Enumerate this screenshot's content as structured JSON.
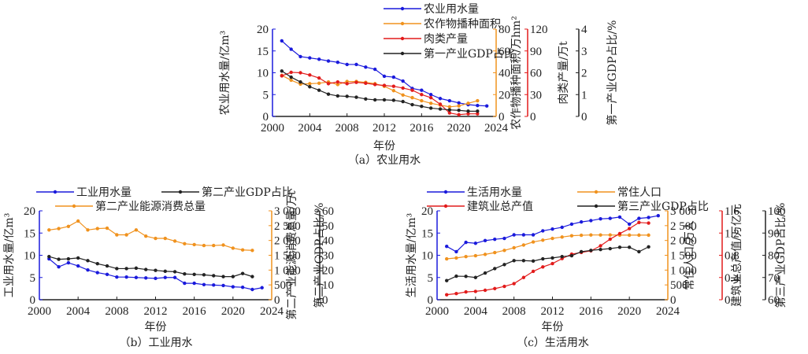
{
  "chart_data": [
    {
      "id": "a",
      "type": "line",
      "caption": "（a）农业用水",
      "xlabel": "年份",
      "xlim": [
        2000,
        2024
      ],
      "xticks": [
        2000,
        2004,
        2008,
        2012,
        2016,
        2020,
        2024
      ],
      "axes": [
        {
          "id": "y1",
          "label": "农业用水量/亿m³",
          "lim": [
            0,
            20
          ],
          "ticks": [
            "0",
            "5",
            "10",
            "15",
            "20"
          ],
          "color": "#1a1adc",
          "side": "left"
        },
        {
          "id": "y2",
          "label": "农作物播种面积/万hm²",
          "lim": [
            0,
            80
          ],
          "ticks": [
            "0",
            "20",
            "40",
            "60",
            "80"
          ],
          "color": "#f0921e",
          "side": "right"
        },
        {
          "id": "y3",
          "label": "肉类产量/万t",
          "lim": [
            0,
            120
          ],
          "ticks": [
            "0",
            "30",
            "60",
            "90",
            "120"
          ],
          "color": "#e21b1b",
          "side": "right"
        },
        {
          "id": "y4",
          "label": "第一产业GDP占比/%",
          "lim": [
            0,
            4
          ],
          "ticks": [
            "0",
            "1",
            "2",
            "3",
            "4"
          ],
          "color": "#222222",
          "side": "right"
        }
      ],
      "series": [
        {
          "name": "农业用水量",
          "axis": "y1",
          "color": "#1a1adc",
          "x": [
            2001,
            2002,
            2003,
            2004,
            2005,
            2006,
            2007,
            2008,
            2009,
            2010,
            2011,
            2012,
            2013,
            2014,
            2015,
            2016,
            2017,
            2018,
            2019,
            2020,
            2021,
            2022,
            2023
          ],
          "values": [
            17.3,
            15.4,
            13.7,
            13.4,
            13.1,
            12.7,
            12.4,
            11.9,
            11.9,
            11.3,
            10.8,
            9.2,
            9.0,
            8.1,
            6.4,
            6.0,
            5.0,
            4.1,
            3.6,
            3.1,
            2.7,
            2.5,
            2.4
          ]
        },
        {
          "name": "农作物播种面积",
          "axis": "y2",
          "color": "#f0921e",
          "x": [
            2001,
            2002,
            2003,
            2004,
            2005,
            2006,
            2007,
            2008,
            2009,
            2010,
            2011,
            2012,
            2013,
            2014,
            2015,
            2016,
            2017,
            2018,
            2019,
            2020,
            2021,
            2022
          ],
          "values": [
            37.6,
            33.2,
            29.6,
            30.0,
            30.4,
            31.6,
            29.2,
            32.0,
            32.0,
            31.2,
            30.0,
            27.6,
            23.6,
            19.6,
            17.2,
            14.4,
            12.0,
            10.4,
            8.8,
            9.6,
            12.0,
            14.4
          ]
        },
        {
          "name": "肉类产量",
          "axis": "y3",
          "color": "#e21b1b",
          "x": [
            2001,
            2002,
            2003,
            2004,
            2005,
            2006,
            2007,
            2008,
            2009,
            2010,
            2011,
            2012,
            2013,
            2014,
            2015,
            2016,
            2017,
            2018,
            2019,
            2020,
            2021,
            2022
          ],
          "values": [
            55.8,
            60.6,
            60.0,
            57.0,
            52.8,
            45.0,
            47.4,
            45.0,
            46.8,
            45.6,
            43.8,
            42.6,
            41.4,
            39.0,
            36.0,
            30.0,
            25.8,
            16.8,
            4.8,
            2.4,
            3.6,
            3.6
          ]
        },
        {
          "name": "第一产业GDP占比",
          "axis": "y4",
          "color": "#222222",
          "x": [
            2001,
            2002,
            2003,
            2004,
            2005,
            2006,
            2007,
            2008,
            2009,
            2010,
            2011,
            2012,
            2013,
            2014,
            2015,
            2016,
            2017,
            2018,
            2019,
            2020,
            2021,
            2022
          ],
          "values": [
            2.08,
            1.8,
            1.58,
            1.36,
            1.2,
            1.02,
            0.94,
            0.92,
            0.88,
            0.8,
            0.76,
            0.76,
            0.74,
            0.68,
            0.54,
            0.46,
            0.38,
            0.34,
            0.3,
            0.28,
            0.24,
            0.24
          ]
        }
      ],
      "legend": "top-right, stacked"
    },
    {
      "id": "b",
      "type": "line",
      "caption": "（b）工业用水",
      "xlabel": "年份",
      "xlim": [
        2000,
        2024
      ],
      "xticks": [
        2000,
        2004,
        2008,
        2012,
        2016,
        2020,
        2024
      ],
      "axes": [
        {
          "id": "y1",
          "label": "工业用水量/亿m³",
          "lim": [
            0,
            20
          ],
          "ticks": [
            "0",
            "5",
            "10",
            "15",
            "20"
          ],
          "color": "#1a1adc",
          "side": "left"
        },
        {
          "id": "y2",
          "label": "第二产业能源消费总量/万t",
          "lim": [
            0,
            3000
          ],
          "ticks": [
            "0",
            "500",
            "1 000",
            "1 500",
            "2 000",
            "2 500",
            "3 000"
          ],
          "color": "#f0921e",
          "side": "right"
        },
        {
          "id": "y3",
          "label": "第二产业GDP占比/%",
          "lim": [
            0,
            60
          ],
          "ticks": [
            "0",
            "10",
            "20",
            "30",
            "40",
            "50",
            "60"
          ],
          "color": "#222222",
          "side": "right"
        }
      ],
      "series": [
        {
          "name": "工业用水量",
          "axis": "y1",
          "color": "#1a1adc",
          "x": [
            2001,
            2002,
            2003,
            2004,
            2005,
            2006,
            2007,
            2008,
            2009,
            2010,
            2011,
            2012,
            2013,
            2014,
            2015,
            2016,
            2017,
            2018,
            2019,
            2020,
            2021,
            2022,
            2023
          ],
          "values": [
            9.2,
            7.4,
            8.3,
            7.6,
            6.7,
            6.1,
            5.7,
            5.1,
            5.1,
            5.0,
            4.9,
            4.8,
            5.0,
            5.0,
            3.7,
            3.7,
            3.4,
            3.3,
            3.2,
            2.9,
            2.8,
            2.3,
            2.7
          ]
        },
        {
          "name": "第二产业GDP占比",
          "axis": "y3",
          "color": "#222222",
          "x": [
            2001,
            2002,
            2003,
            2004,
            2005,
            2006,
            2007,
            2008,
            2009,
            2010,
            2011,
            2012,
            2013,
            2014,
            2015,
            2016,
            2017,
            2018,
            2019,
            2020,
            2021,
            2022
          ],
          "values": [
            29.1,
            27.3,
            27.6,
            28.2,
            26.4,
            24.3,
            22.8,
            21.0,
            21.0,
            21.3,
            20.4,
            19.8,
            19.2,
            18.9,
            17.4,
            17.1,
            16.8,
            16.2,
            15.6,
            15.6,
            17.7,
            15.6
          ]
        },
        {
          "name": "第二产业能源消费总量",
          "axis": "y2",
          "color": "#f0921e",
          "x": [
            2001,
            2002,
            2003,
            2004,
            2005,
            2006,
            2007,
            2008,
            2009,
            2010,
            2011,
            2012,
            2013,
            2014,
            2015,
            2016,
            2017,
            2018,
            2019,
            2020,
            2021,
            2022
          ],
          "values": [
            2355,
            2400,
            2475,
            2655,
            2355,
            2400,
            2415,
            2190,
            2190,
            2355,
            2145,
            2070,
            2070,
            1980,
            1890,
            1860,
            1830,
            1830,
            1845,
            1740,
            1680,
            1665
          ]
        }
      ],
      "legend": "top, two rows"
    },
    {
      "id": "c",
      "type": "line",
      "caption": "（c）生活用水",
      "xlabel": "年份",
      "xlim": [
        2000,
        2024
      ],
      "xticks": [
        2000,
        2004,
        2008,
        2012,
        2016,
        2020,
        2024
      ],
      "axes": [
        {
          "id": "y1",
          "label": "生活用水量/亿m³",
          "lim": [
            0,
            20
          ],
          "ticks": [
            "0",
            "5",
            "10",
            "15",
            "20"
          ],
          "color": "#1a1adc",
          "side": "left"
        },
        {
          "id": "y2",
          "label": "常住人口/万人",
          "lim": [
            0,
            3000
          ],
          "ticks": [
            "0",
            "500",
            "1 000",
            "1 500",
            "2 000",
            "2 500",
            "3 000"
          ],
          "color": "#f0921e",
          "side": "right"
        },
        {
          "id": "y3",
          "label": "建筑业总产值/万亿元",
          "lim": [
            0,
            1.6
          ],
          "ticks": [
            "0",
            "0.4",
            "0.8",
            "1.2",
            "1.6"
          ],
          "color": "#e21b1b",
          "side": "right"
        },
        {
          "id": "y4",
          "label": "第三产业GDP占比/%",
          "lim": [
            60,
            100
          ],
          "ticks": [
            "60",
            "70",
            "80",
            "90",
            "100"
          ],
          "color": "#222222",
          "side": "right"
        }
      ],
      "series": [
        {
          "name": "生活用水量",
          "axis": "y1",
          "color": "#1a1adc",
          "x": [
            2001,
            2002,
            2003,
            2004,
            2005,
            2006,
            2007,
            2008,
            2009,
            2010,
            2011,
            2012,
            2013,
            2014,
            2015,
            2016,
            2017,
            2018,
            2019,
            2020,
            2021,
            2022,
            2023
          ],
          "values": [
            12.0,
            10.8,
            12.9,
            12.7,
            13.3,
            13.6,
            13.8,
            14.6,
            14.6,
            14.6,
            15.5,
            15.9,
            16.3,
            17.0,
            17.5,
            17.8,
            18.2,
            18.3,
            18.6,
            17.0,
            18.3,
            18.5,
            18.9
          ]
        },
        {
          "name": "常住人口",
          "axis": "y2",
          "color": "#f0921e",
          "x": [
            2001,
            2002,
            2003,
            2004,
            2005,
            2006,
            2007,
            2008,
            2009,
            2010,
            2011,
            2012,
            2013,
            2014,
            2015,
            2016,
            2017,
            2018,
            2019,
            2020,
            2021,
            2022
          ],
          "values": [
            1380,
            1410,
            1455,
            1485,
            1530,
            1590,
            1665,
            1755,
            1845,
            1950,
            2010,
            2070,
            2115,
            2160,
            2175,
            2185,
            2185,
            2185,
            2180,
            2180,
            2180,
            2180
          ]
        },
        {
          "name": "建筑业总产值",
          "axis": "y3",
          "color": "#e21b1b",
          "x": [
            2001,
            2002,
            2003,
            2004,
            2005,
            2006,
            2007,
            2008,
            2009,
            2010,
            2011,
            2012,
            2013,
            2014,
            2015,
            2016,
            2017,
            2018,
            2019,
            2020,
            2021,
            2022
          ],
          "values": [
            0.09,
            0.11,
            0.14,
            0.15,
            0.17,
            0.2,
            0.24,
            0.29,
            0.4,
            0.51,
            0.59,
            0.65,
            0.74,
            0.82,
            0.85,
            0.88,
            0.97,
            1.09,
            1.19,
            1.28,
            1.39,
            1.38
          ]
        },
        {
          "name": "第三产业GDP占比",
          "axis": "y4",
          "color": "#222222",
          "x": [
            2001,
            2002,
            2003,
            2004,
            2005,
            2006,
            2007,
            2008,
            2009,
            2010,
            2011,
            2012,
            2013,
            2014,
            2015,
            2016,
            2017,
            2018,
            2019,
            2020,
            2021,
            2022
          ],
          "values": [
            68.6,
            70.6,
            70.5,
            70.0,
            72.0,
            74.0,
            75.8,
            77.6,
            77.6,
            77.4,
            78.4,
            78.8,
            79.4,
            79.8,
            81.6,
            82.2,
            82.6,
            83.0,
            83.6,
            83.6,
            81.6,
            83.8
          ]
        }
      ],
      "legend": "top, two rows"
    }
  ]
}
